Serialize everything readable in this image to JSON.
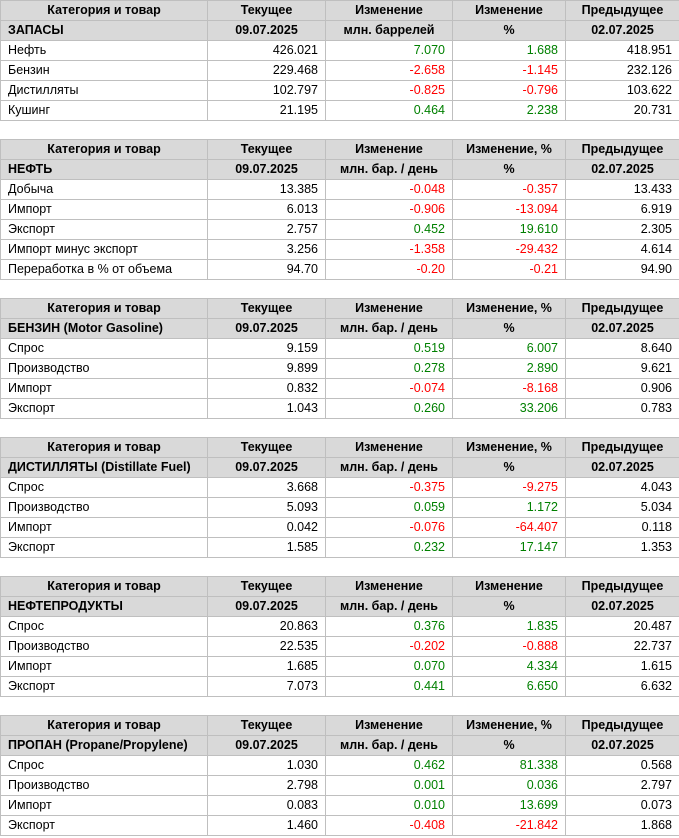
{
  "colors": {
    "positive": "#008000",
    "negative": "#FF0000",
    "header_bg": "#D9D9D9",
    "border": "#BFBFBF"
  },
  "chart_data": [
    {
      "type": "table",
      "title": "ЗАПАСЫ",
      "header": [
        "Категория и товар",
        "Текущее",
        "Изменение",
        "Изменение",
        "Предыдущее"
      ],
      "subheader": [
        "ЗАПАСЫ",
        "09.07.2025",
        "млн. баррелей",
        "%",
        "02.07.2025"
      ],
      "rows": [
        [
          "Нефть",
          "426.021",
          "7.070",
          "1.688",
          "418.951"
        ],
        [
          "Бензин",
          "229.468",
          "-2.658",
          "-1.145",
          "232.126"
        ],
        [
          "Дистилляты",
          "102.797",
          "-0.825",
          "-0.796",
          "103.622"
        ],
        [
          "Кушинг",
          "21.195",
          "0.464",
          "2.238",
          "20.731"
        ]
      ]
    },
    {
      "type": "table",
      "title": "НЕФТЬ",
      "header": [
        "Категория и товар",
        "Текущее",
        "Изменение",
        "Изменение, %",
        "Предыдущее"
      ],
      "subheader": [
        "НЕФТЬ",
        "09.07.2025",
        "млн. бар. / день",
        "%",
        "02.07.2025"
      ],
      "rows": [
        [
          "Добыча",
          "13.385",
          "-0.048",
          "-0.357",
          "13.433"
        ],
        [
          "Импорт",
          "6.013",
          "-0.906",
          "-13.094",
          "6.919"
        ],
        [
          "Экспорт",
          "2.757",
          "0.452",
          "19.610",
          "2.305"
        ],
        [
          "Импорт минус экспорт",
          "3.256",
          "-1.358",
          "-29.432",
          "4.614"
        ],
        [
          "Переработка в % от объема",
          "94.70",
          "-0.20",
          "-0.21",
          "94.90"
        ]
      ]
    },
    {
      "type": "table",
      "title": "БЕНЗИН (Motor Gasoline)",
      "header": [
        "Категория и товар",
        "Текущее",
        "Изменение",
        "Изменение, %",
        "Предыдущее"
      ],
      "subheader": [
        "БЕНЗИН (Motor Gasoline)",
        "09.07.2025",
        "млн. бар. / день",
        "%",
        "02.07.2025"
      ],
      "rows": [
        [
          "Спрос",
          "9.159",
          "0.519",
          "6.007",
          "8.640"
        ],
        [
          "Производство",
          "9.899",
          "0.278",
          "2.890",
          "9.621"
        ],
        [
          "Импорт",
          "0.832",
          "-0.074",
          "-8.168",
          "0.906"
        ],
        [
          "Экспорт",
          "1.043",
          "0.260",
          "33.206",
          "0.783"
        ]
      ]
    },
    {
      "type": "table",
      "title": "ДИСТИЛЛЯТЫ (Distillate Fuel)",
      "header": [
        "Категория и товар",
        "Текущее",
        "Изменение",
        "Изменение, %",
        "Предыдущее"
      ],
      "subheader": [
        "ДИСТИЛЛЯТЫ (Distillate Fuel)",
        "09.07.2025",
        "млн. бар. / день",
        "%",
        "02.07.2025"
      ],
      "rows": [
        [
          "Спрос",
          "3.668",
          "-0.375",
          "-9.275",
          "4.043"
        ],
        [
          "Производство",
          "5.093",
          "0.059",
          "1.172",
          "5.034"
        ],
        [
          "Импорт",
          "0.042",
          "-0.076",
          "-64.407",
          "0.118"
        ],
        [
          "Экспорт",
          "1.585",
          "0.232",
          "17.147",
          "1.353"
        ]
      ]
    },
    {
      "type": "table",
      "title": "НЕФТЕПРОДУКТЫ",
      "header": [
        "Категория и товар",
        "Текущее",
        "Изменение",
        "Изменение",
        "Предыдущее"
      ],
      "subheader": [
        "НЕФТЕПРОДУКТЫ",
        "09.07.2025",
        "млн. бар. / день",
        "%",
        "02.07.2025"
      ],
      "rows": [
        [
          "Спрос",
          "20.863",
          "0.376",
          "1.835",
          "20.487"
        ],
        [
          "Производство",
          "22.535",
          "-0.202",
          "-0.888",
          "22.737"
        ],
        [
          "Импорт",
          "1.685",
          "0.070",
          "4.334",
          "1.615"
        ],
        [
          "Экспорт",
          "7.073",
          "0.441",
          "6.650",
          "6.632"
        ]
      ]
    },
    {
      "type": "table",
      "title": "ПРОПАН (Propane/Propylene)",
      "header": [
        "Категория и товар",
        "Текущее",
        "Изменение",
        "Изменение, %",
        "Предыдущее"
      ],
      "subheader": [
        "ПРОПАН (Propane/Propylene)",
        "09.07.2025",
        "млн. бар. / день",
        "%",
        "02.07.2025"
      ],
      "rows": [
        [
          "Спрос",
          "1.030",
          "0.462",
          "81.338",
          "0.568"
        ],
        [
          "Производство",
          "2.798",
          "0.001",
          "0.036",
          "2.797"
        ],
        [
          "Импорт",
          "0.083",
          "0.010",
          "13.699",
          "0.073"
        ],
        [
          "Экспорт",
          "1.460",
          "-0.408",
          "-21.842",
          "1.868"
        ]
      ]
    }
  ]
}
